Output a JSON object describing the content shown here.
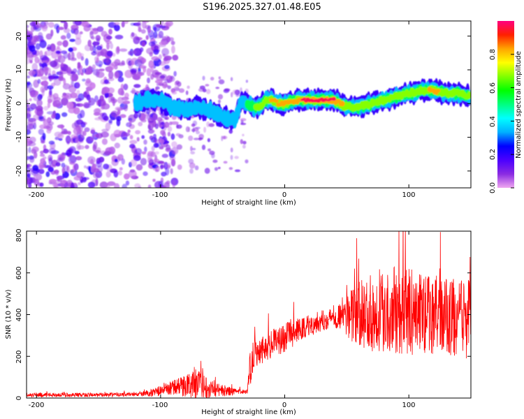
{
  "title": "S196.2025.327.01.48.E05",
  "chart_data": [
    {
      "type": "heatmap",
      "xlabel": "Height of straight line (km)",
      "ylabel": "Frequency (Hz)",
      "xlim": [
        -208,
        150
      ],
      "ylim": [
        -25,
        24.5
      ],
      "xticks": [
        -200,
        -100,
        0,
        100
      ],
      "xtick_labels": [
        "-200",
        "-100",
        "0",
        "100"
      ],
      "yticks": [
        20,
        10,
        0,
        -10,
        -20
      ],
      "ytick_labels": [
        "20",
        "10",
        "0",
        "-10",
        "-20"
      ],
      "colorbar": {
        "label": "Normalized spectral amplitude",
        "range": [
          0,
          1
        ],
        "ticks": [
          0.0,
          0.2,
          0.4,
          0.6,
          0.8
        ],
        "tick_labels": [
          "0.0",
          "0.2",
          "0.4",
          "0.6",
          "0.8"
        ],
        "stops": [
          "#f0a8f0",
          "#8a2be2",
          "#4b00ff",
          "#0000ff",
          "#00b0ff",
          "#00ffff",
          "#00ff80",
          "#00ff00",
          "#80ff00",
          "#ffff00",
          "#ffa500",
          "#ff2000",
          "#ff0080"
        ]
      },
      "ridge": {
        "x": [
          -120,
          -110,
          -100,
          -90,
          -80,
          -70,
          -60,
          -50,
          -40,
          -35,
          -30,
          -25,
          -20,
          -15,
          -10,
          -5,
          0,
          10,
          20,
          30,
          40,
          45,
          50,
          60,
          70,
          80,
          90,
          100,
          110,
          120,
          130,
          140,
          150
        ],
        "y": [
          0,
          1,
          1,
          -1,
          -2,
          -1,
          -2,
          -4,
          -5,
          1,
          0,
          -1,
          -1,
          1,
          1,
          0,
          0,
          1,
          1,
          1,
          1,
          0,
          -1,
          -1,
          0,
          1,
          2,
          3,
          4,
          4,
          3,
          3,
          2
        ],
        "amplitude": [
          0.3,
          0.35,
          0.35,
          0.4,
          0.4,
          0.4,
          0.4,
          0.45,
          0.4,
          0.4,
          0.5,
          0.6,
          0.75,
          0.75,
          0.8,
          0.85,
          0.9,
          0.9,
          0.95,
          0.95,
          0.95,
          0.8,
          0.75,
          0.7,
          0.7,
          0.75,
          0.75,
          0.7,
          0.75,
          0.8,
          0.75,
          0.7,
          0.75
        ]
      },
      "background_noise": "scattered low-amplitude blobs (0.05-0.3) across all frequencies for x < -100 km"
    },
    {
      "type": "line",
      "xlabel": "Height of straight line (km)",
      "ylabel": "SNR (10 * v/v)",
      "xlim": [
        -208,
        150
      ],
      "ylim": [
        0,
        800
      ],
      "xticks": [
        -200,
        -100,
        0,
        100
      ],
      "xtick_labels": [
        "-200",
        "-100",
        "0",
        "100"
      ],
      "yticks": [
        0,
        200,
        400,
        600,
        800
      ],
      "ytick_labels": [
        "0",
        "200",
        "400",
        "600",
        "800"
      ],
      "series": [
        {
          "name": "SNR",
          "color": "#ff0000",
          "envelope_x": [
            -208,
            -180,
            -150,
            -120,
            -110,
            -100,
            -90,
            -80,
            -70,
            -60,
            -50,
            -40,
            -35,
            -30,
            -28,
            -25,
            -20,
            -10,
            0,
            10,
            20,
            30,
            40,
            50,
            60,
            70,
            80,
            90,
            100,
            110,
            120,
            130,
            140,
            150
          ],
          "envelope_mean": [
            15,
            15,
            15,
            18,
            22,
            35,
            50,
            60,
            65,
            50,
            35,
            30,
            30,
            30,
            150,
            220,
            230,
            260,
            290,
            320,
            350,
            370,
            390,
            400,
            400,
            410,
            420,
            420,
            410,
            410,
            400,
            390,
            380,
            380
          ],
          "envelope_amplitude": [
            10,
            10,
            10,
            10,
            15,
            25,
            35,
            55,
            70,
            50,
            30,
            15,
            10,
            10,
            100,
            80,
            70,
            70,
            70,
            60,
            55,
            50,
            50,
            110,
            160,
            190,
            200,
            210,
            210,
            200,
            190,
            190,
            190,
            190
          ]
        }
      ]
    }
  ]
}
